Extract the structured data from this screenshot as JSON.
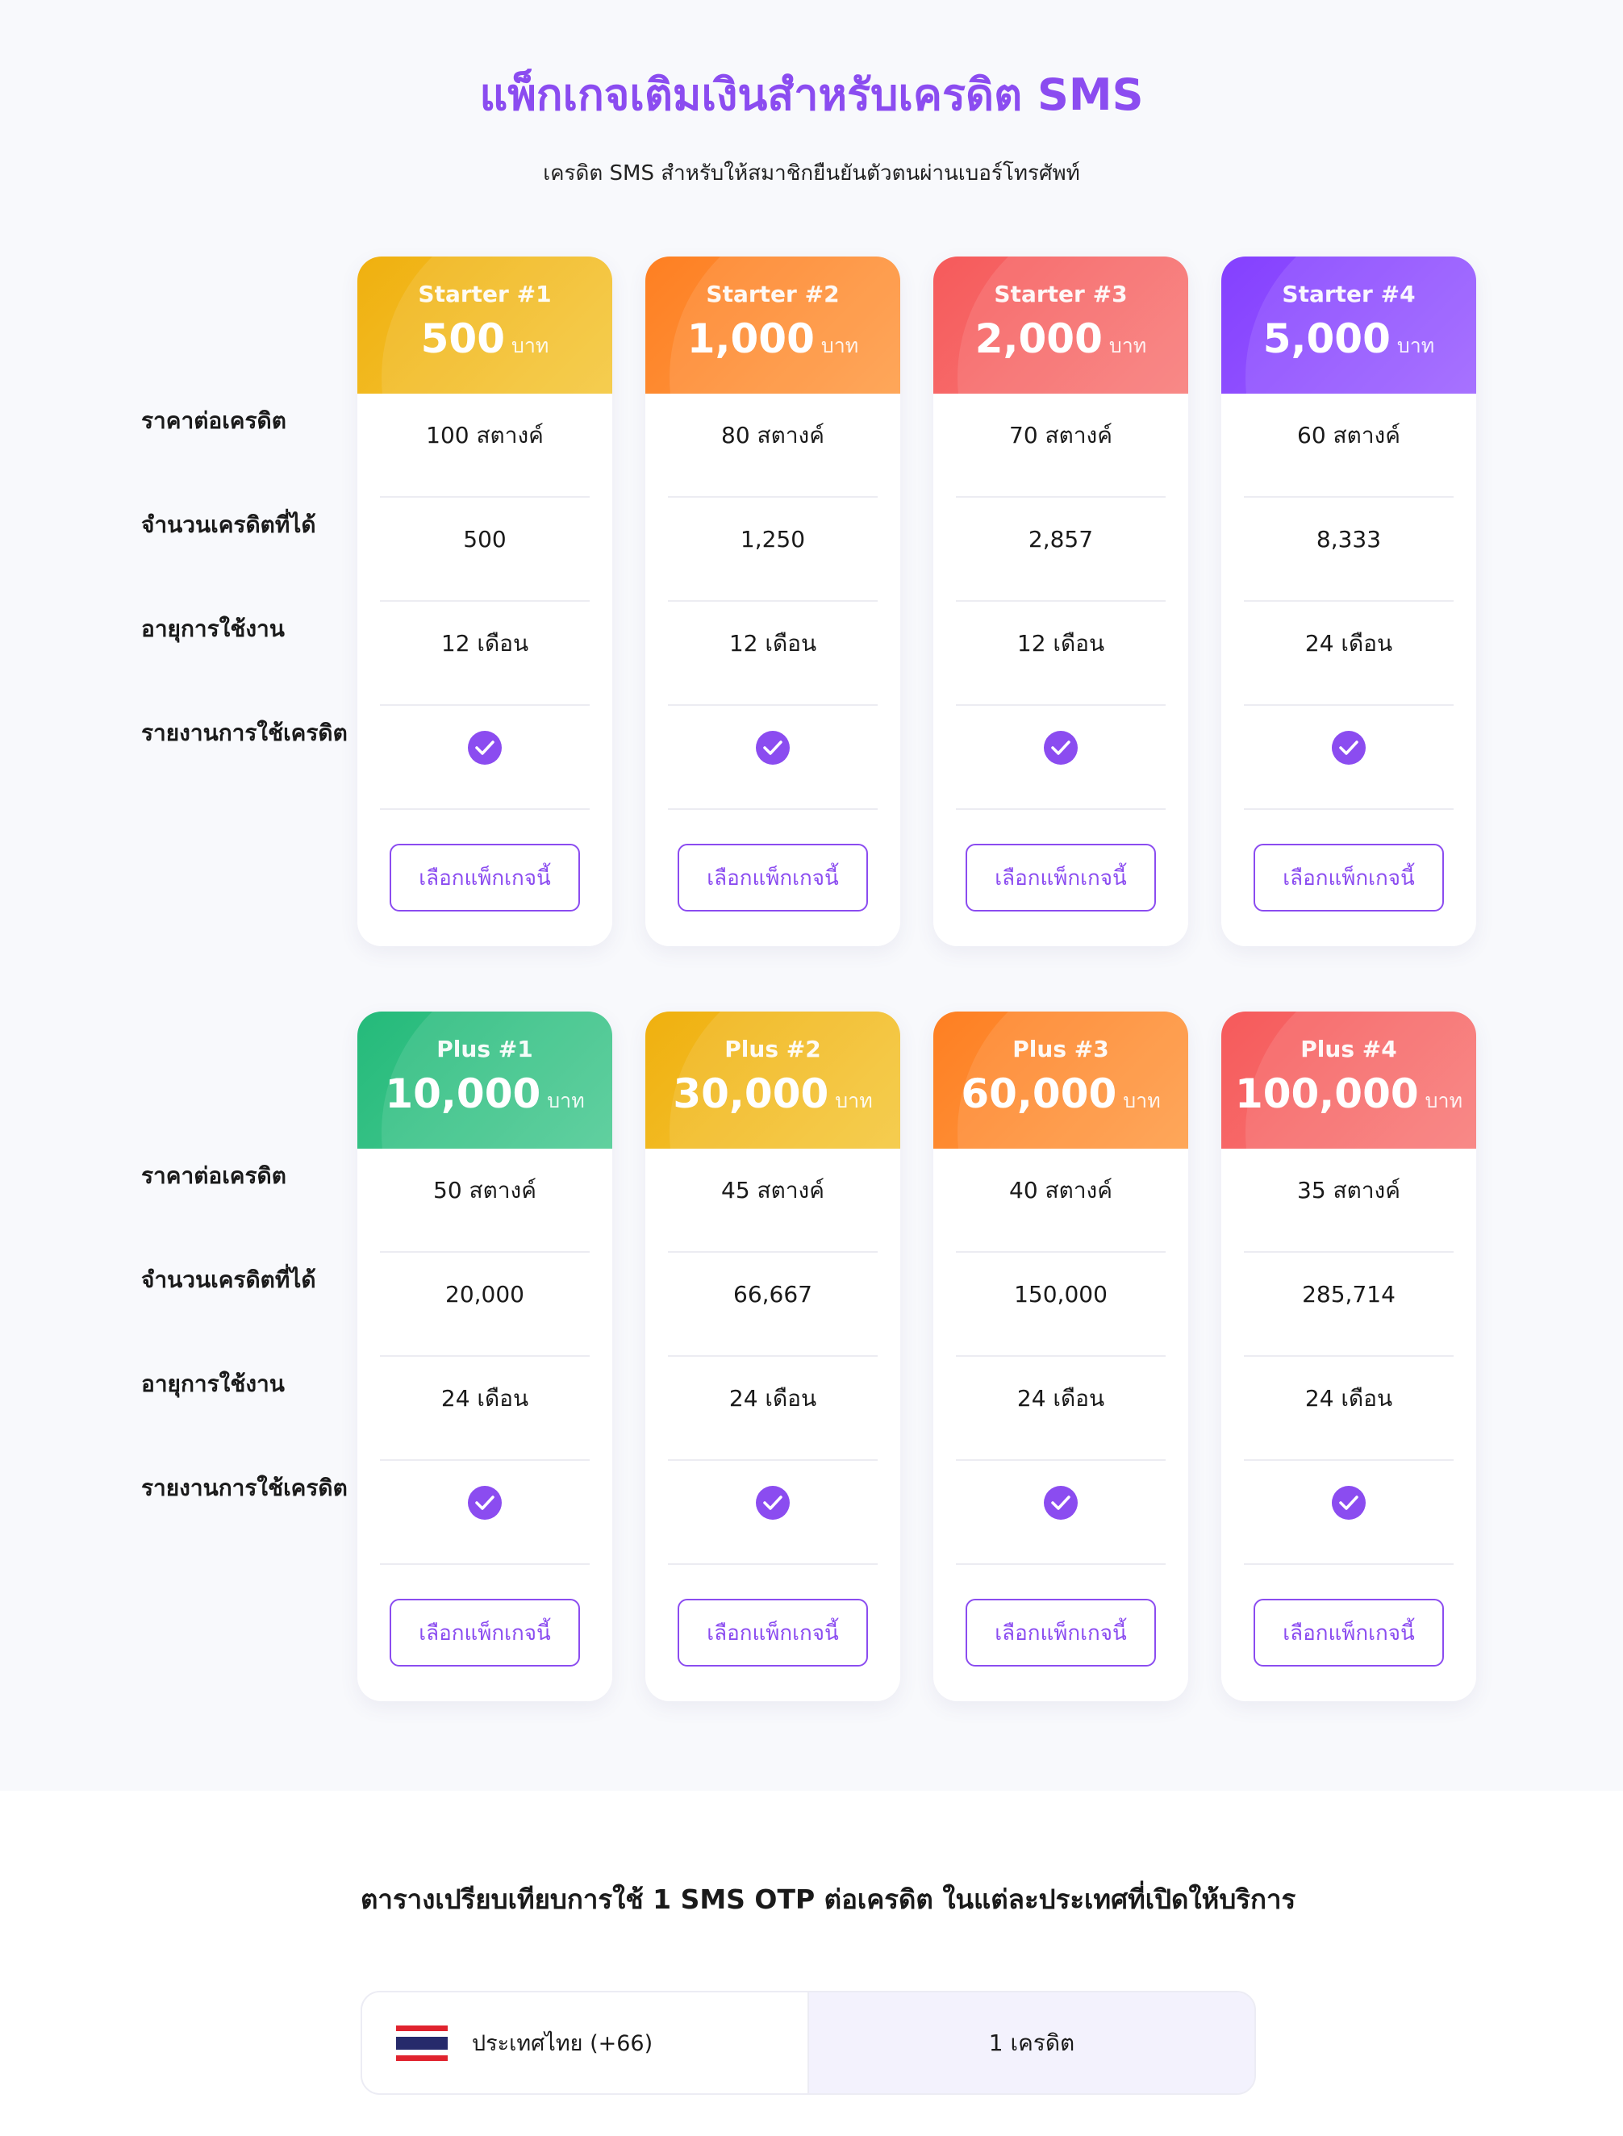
{
  "page": {
    "title": "แพ็กเกจเติมเงินสำหรับเครดิต SMS",
    "subtitle": "เครดิต SMS สำหรับให้สมาชิกยืนยันตัวตนผ่านเบอร์โทรศัพท์"
  },
  "row_labels": {
    "price_per_credit": "ราคาต่อเครดิต",
    "credits_received": "จำนวนเครดิตที่ได้",
    "validity": "อายุการใช้งาน",
    "usage_report": "รายงานการใช้เครดิต"
  },
  "select_button_label": "เลือกแพ็กเกจนี้",
  "currency_unit": "บาท",
  "starter_packages": [
    {
      "name": "Starter #1",
      "price": "500",
      "price_per_credit": "100 สตางค์",
      "credits": "500",
      "validity": "12 เดือน",
      "report": true,
      "color": "#f0b00f"
    },
    {
      "name": "Starter #2",
      "price": "1,000",
      "price_per_credit": "80 สตางค์",
      "credits": "1,250",
      "validity": "12 เดือน",
      "report": true,
      "color": "#fe7f22"
    },
    {
      "name": "Starter #3",
      "price": "2,000",
      "price_per_credit": "70 สตางค์",
      "credits": "2,857",
      "validity": "12 เดือน",
      "report": true,
      "color": "#f65a5b"
    },
    {
      "name": "Starter #4",
      "price": "5,000",
      "price_per_credit": "60 สตางค์",
      "credits": "8,333",
      "validity": "24 เดือน",
      "report": true,
      "color": "#8440ff"
    }
  ],
  "plus_packages": [
    {
      "name": "Plus #1",
      "price": "10,000",
      "price_per_credit": "50 สตางค์",
      "credits": "20,000",
      "validity": "24 เดือน",
      "report": true,
      "color": "#24ba7a"
    },
    {
      "name": "Plus #2",
      "price": "30,000",
      "price_per_credit": "45 สตางค์",
      "credits": "66,667",
      "validity": "24 เดือน",
      "report": true,
      "color": "#f0b00f"
    },
    {
      "name": "Plus #3",
      "price": "60,000",
      "price_per_credit": "40 สตางค์",
      "credits": "150,000",
      "validity": "24 เดือน",
      "report": true,
      "color": "#fe7f22"
    },
    {
      "name": "Plus #4",
      "price": "100,000",
      "price_per_credit": "35 สตางค์",
      "credits": "285,714",
      "validity": "24 เดือน",
      "report": true,
      "color": "#f65a5b"
    }
  ],
  "comparison": {
    "title": "ตารางเปรียบเทียบการใช้ 1 SMS OTP ต่อเครดิต ในแต่ละประเทศที่เปิดให้บริการ",
    "rows": [
      {
        "country": "ประเทศไทย (+66)",
        "flag_icon": "thailand-flag-icon",
        "credits": "1 เครดิต"
      }
    ]
  },
  "colors": {
    "accent": "#8b4cf0",
    "background": "#f8f9fc"
  }
}
